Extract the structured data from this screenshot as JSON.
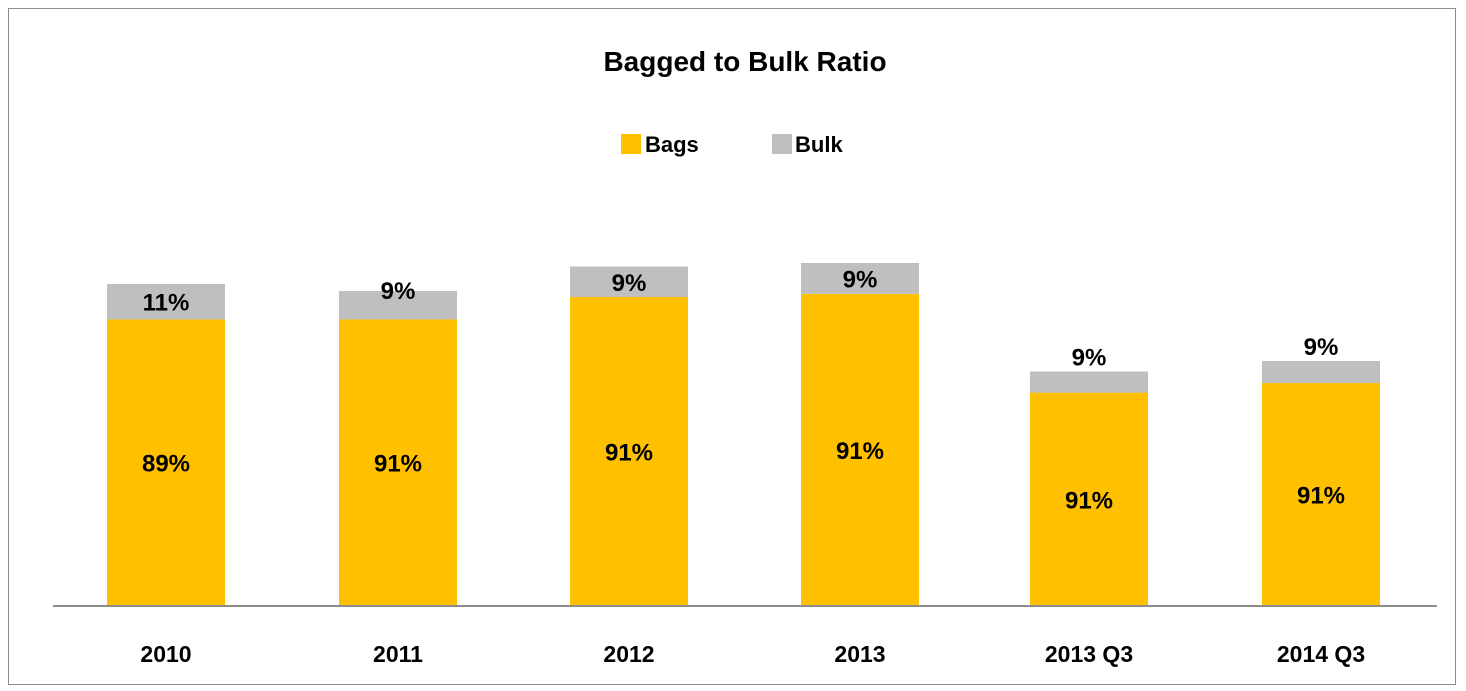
{
  "chart_data": {
    "type": "bar",
    "stacked": true,
    "title": "Bagged to Bulk Ratio",
    "categories": [
      "2010",
      "2011",
      "2012",
      "2013",
      "2013 Q3",
      "2014 Q3"
    ],
    "series": [
      {
        "name": "Bags",
        "values": [
          89,
          91,
          91,
          91,
          91,
          91
        ],
        "labels": [
          "89%",
          "91%",
          "91%",
          "91%",
          "91%",
          "91%"
        ],
        "color": "#FFC000"
      },
      {
        "name": "Bulk",
        "values": [
          11,
          9,
          9,
          9,
          9,
          9
        ],
        "labels": [
          "11%",
          "9%",
          "9%",
          "9%",
          "9%",
          "9%"
        ],
        "color": "#BFBFBF"
      }
    ],
    "bar_totals_relative": [
      0.92,
      0.9,
      0.97,
      0.98,
      0.67,
      0.7
    ],
    "legend_position": "top",
    "grid": false,
    "axis_color": "#8C8C8C"
  }
}
